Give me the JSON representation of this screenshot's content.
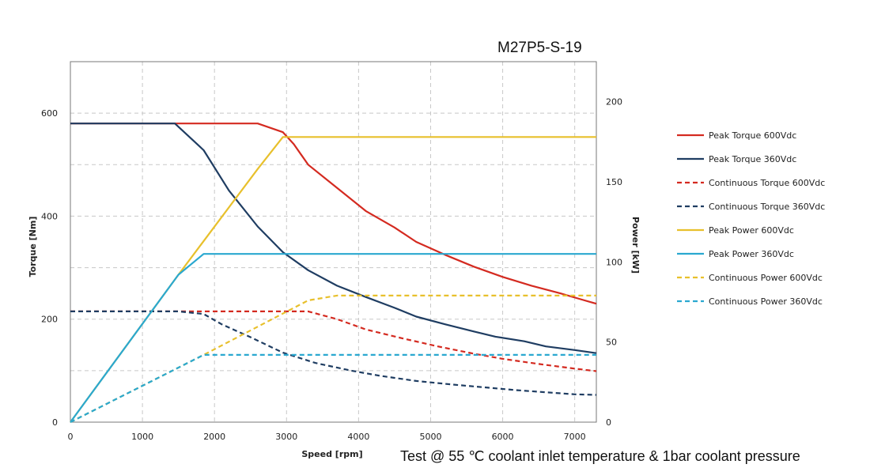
{
  "chart_data": {
    "type": "line",
    "title": "M27P5-S-19",
    "footnote": "Test @ 55 ℃ coolant inlet temperature & 1bar coolant pressure",
    "xlabel": "Speed [rpm]",
    "ylabel": "Torque [Nm]",
    "y2label": "Power [kW]",
    "xlim": [
      0,
      7300
    ],
    "ylim": [
      0,
      700
    ],
    "y2lim": [
      0,
      225
    ],
    "xticks": [
      "0",
      "1000",
      "2000",
      "3000",
      "4000",
      "5000",
      "6000",
      "7000"
    ],
    "yticks": [
      "0",
      "200",
      "400",
      "600"
    ],
    "y2ticks": [
      "0",
      "50",
      "100",
      "150",
      "200"
    ],
    "grid": true,
    "legend_position": "right",
    "series": [
      {
        "name": "Peak Torque 600Vdc",
        "axis": "left",
        "color": "#d42a20",
        "dash": false,
        "points": [
          [
            0,
            580
          ],
          [
            1000,
            580
          ],
          [
            1500,
            580
          ],
          [
            2000,
            580
          ],
          [
            2600,
            580
          ],
          [
            2950,
            563
          ],
          [
            3100,
            540
          ],
          [
            3300,
            500
          ],
          [
            3700,
            455
          ],
          [
            4100,
            410
          ],
          [
            4500,
            378
          ],
          [
            4800,
            350
          ],
          [
            5200,
            325
          ],
          [
            5600,
            302
          ],
          [
            6000,
            282
          ],
          [
            6400,
            265
          ],
          [
            6800,
            250
          ],
          [
            7100,
            238
          ],
          [
            7300,
            230
          ]
        ]
      },
      {
        "name": "Peak Torque 360Vdc",
        "axis": "left",
        "color": "#1f3d62",
        "dash": false,
        "points": [
          [
            0,
            580
          ],
          [
            1000,
            580
          ],
          [
            1450,
            580
          ],
          [
            1850,
            528
          ],
          [
            2200,
            450
          ],
          [
            2600,
            380
          ],
          [
            2950,
            330
          ],
          [
            3300,
            295
          ],
          [
            3700,
            265
          ],
          [
            4100,
            243
          ],
          [
            4500,
            222
          ],
          [
            4800,
            205
          ],
          [
            5200,
            190
          ],
          [
            5600,
            176
          ],
          [
            5900,
            166
          ],
          [
            6300,
            157
          ],
          [
            6600,
            147
          ],
          [
            7000,
            140
          ],
          [
            7300,
            134
          ]
        ]
      },
      {
        "name": "Continuous Torque 600Vdc",
        "axis": "left",
        "color": "#d42a20",
        "dash": true,
        "points": [
          [
            0,
            215
          ],
          [
            1000,
            215
          ],
          [
            1800,
            215
          ],
          [
            2500,
            215
          ],
          [
            3300,
            215
          ],
          [
            3700,
            200
          ],
          [
            4100,
            180
          ],
          [
            4600,
            163
          ],
          [
            5100,
            147
          ],
          [
            5600,
            133
          ],
          [
            6000,
            123
          ],
          [
            6500,
            113
          ],
          [
            7000,
            104
          ],
          [
            7300,
            99
          ]
        ]
      },
      {
        "name": "Continuous Torque 360Vdc",
        "axis": "left",
        "color": "#1f3d62",
        "dash": true,
        "points": [
          [
            0,
            215
          ],
          [
            1500,
            215
          ],
          [
            1850,
            210
          ],
          [
            2100,
            190
          ],
          [
            2500,
            165
          ],
          [
            2950,
            135
          ],
          [
            3400,
            115
          ],
          [
            3900,
            100
          ],
          [
            4300,
            90
          ],
          [
            4800,
            80
          ],
          [
            5300,
            73
          ],
          [
            5800,
            67
          ],
          [
            6200,
            62
          ],
          [
            6600,
            58
          ],
          [
            7000,
            54
          ],
          [
            7300,
            53
          ]
        ]
      },
      {
        "name": "Peak Power 600Vdc",
        "axis": "right",
        "color": "#e8c02c",
        "dash": false,
        "points": [
          [
            0,
            0
          ],
          [
            1500,
            92
          ],
          [
            2600,
            158
          ],
          [
            2950,
            178
          ],
          [
            3300,
            178
          ],
          [
            4000,
            178
          ],
          [
            5000,
            178
          ],
          [
            6000,
            178
          ],
          [
            7300,
            178
          ]
        ]
      },
      {
        "name": "Peak Power 360Vdc",
        "axis": "right",
        "color": "#2aa8d0",
        "dash": false,
        "points": [
          [
            0,
            0
          ],
          [
            1500,
            92
          ],
          [
            1850,
            105
          ],
          [
            3000,
            105
          ],
          [
            4000,
            105
          ],
          [
            5000,
            105
          ],
          [
            6000,
            105
          ],
          [
            7300,
            105
          ]
        ]
      },
      {
        "name": "Continuous Power 600Vdc",
        "axis": "right",
        "color": "#e8c02c",
        "dash": true,
        "points": [
          [
            0,
            0
          ],
          [
            1850,
            42
          ],
          [
            3300,
            76
          ],
          [
            3700,
            79
          ],
          [
            4500,
            79
          ],
          [
            5500,
            79
          ],
          [
            6500,
            79
          ],
          [
            7300,
            79
          ]
        ]
      },
      {
        "name": "Continuous Power 360Vdc",
        "axis": "right",
        "color": "#2aa8d0",
        "dash": true,
        "points": [
          [
            0,
            0
          ],
          [
            1850,
            42
          ],
          [
            3000,
            42
          ],
          [
            4000,
            42
          ],
          [
            5000,
            42
          ],
          [
            6000,
            42
          ],
          [
            7300,
            42
          ]
        ]
      }
    ]
  }
}
